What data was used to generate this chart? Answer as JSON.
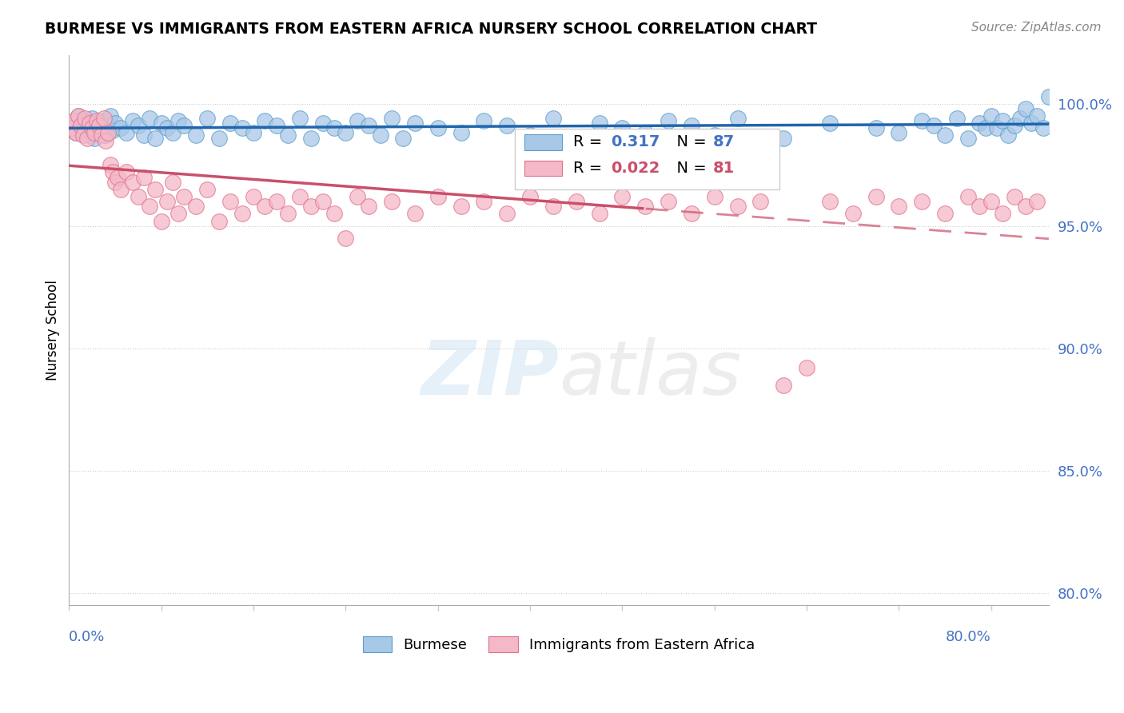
{
  "title": "BURMESE VS IMMIGRANTS FROM EASTERN AFRICA NURSERY SCHOOL CORRELATION CHART",
  "source": "Source: ZipAtlas.com",
  "ylabel": "Nursery School",
  "y_ticks": [
    80.0,
    85.0,
    90.0,
    95.0,
    100.0
  ],
  "x_range": [
    0.0,
    80.0
  ],
  "y_range": [
    79.5,
    102.0
  ],
  "legend_r_blue": "R =  0.317",
  "legend_n_blue": "N = 87",
  "legend_r_pink": "R = 0.022",
  "legend_n_pink": "N = 81",
  "blue_color": "#a8c8e8",
  "blue_edge_color": "#5b9dc9",
  "pink_color": "#f4b8c8",
  "pink_edge_color": "#e0708a",
  "trend_blue_color": "#2166ac",
  "trend_pink_color": "#c9506a",
  "blue_x": [
    0.4,
    0.6,
    0.8,
    1.0,
    1.2,
    1.4,
    1.6,
    1.8,
    2.0,
    2.2,
    2.4,
    2.6,
    2.8,
    3.0,
    3.2,
    3.4,
    3.6,
    3.8,
    4.0,
    4.5,
    5.0,
    5.5,
    6.0,
    6.5,
    7.0,
    7.5,
    8.0,
    8.5,
    9.0,
    9.5,
    10.0,
    11.0,
    12.0,
    13.0,
    14.0,
    15.0,
    16.0,
    17.0,
    18.0,
    19.0,
    20.0,
    21.0,
    22.0,
    23.0,
    24.0,
    25.0,
    26.0,
    27.0,
    28.0,
    29.0,
    30.0,
    32.0,
    34.0,
    36.0,
    38.0,
    40.0,
    42.0,
    44.0,
    46.0,
    48.0,
    50.0,
    52.0,
    54.0,
    56.0,
    58.0,
    62.0,
    66.0,
    70.0,
    72.0,
    74.0,
    75.0,
    76.0,
    77.0,
    78.0,
    79.0,
    79.5,
    80.0,
    80.5,
    81.0,
    81.5,
    82.0,
    82.5,
    83.0,
    83.5,
    84.0,
    84.5,
    85.0
  ],
  "blue_y": [
    99.2,
    98.8,
    99.5,
    99.1,
    98.9,
    99.3,
    99.0,
    98.7,
    99.4,
    98.6,
    99.2,
    99.0,
    98.8,
    99.3,
    98.7,
    99.1,
    99.5,
    98.9,
    99.2,
    99.0,
    98.8,
    99.3,
    99.1,
    98.7,
    99.4,
    98.6,
    99.2,
    99.0,
    98.8,
    99.3,
    99.1,
    98.7,
    99.4,
    98.6,
    99.2,
    99.0,
    98.8,
    99.3,
    99.1,
    98.7,
    99.4,
    98.6,
    99.2,
    99.0,
    98.8,
    99.3,
    99.1,
    98.7,
    99.4,
    98.6,
    99.2,
    99.0,
    98.8,
    99.3,
    99.1,
    98.7,
    99.4,
    98.6,
    99.2,
    99.0,
    98.8,
    99.3,
    99.1,
    98.7,
    99.4,
    98.6,
    99.2,
    99.0,
    98.8,
    99.3,
    99.1,
    98.7,
    99.4,
    98.6,
    99.2,
    99.0,
    99.5,
    99.0,
    99.3,
    98.7,
    99.1,
    99.4,
    99.8,
    99.2,
    99.5,
    99.0,
    100.3
  ],
  "pink_x": [
    0.2,
    0.4,
    0.6,
    0.8,
    1.0,
    1.2,
    1.4,
    1.6,
    1.8,
    2.0,
    2.2,
    2.4,
    2.6,
    2.8,
    3.0,
    3.2,
    3.4,
    3.6,
    3.8,
    4.0,
    4.2,
    4.5,
    5.0,
    5.5,
    6.0,
    6.5,
    7.0,
    7.5,
    8.0,
    8.5,
    9.0,
    9.5,
    10.0,
    11.0,
    12.0,
    13.0,
    14.0,
    15.0,
    16.0,
    17.0,
    18.0,
    19.0,
    20.0,
    21.0,
    22.0,
    23.0,
    24.0,
    25.0,
    26.0,
    28.0,
    30.0,
    32.0,
    34.0,
    36.0,
    38.0,
    40.0,
    42.0,
    44.0,
    46.0,
    48.0,
    50.0,
    52.0,
    54.0,
    56.0,
    58.0,
    60.0,
    62.0,
    64.0,
    66.0,
    68.0,
    70.0,
    72.0,
    74.0,
    76.0,
    78.0,
    79.0,
    80.0,
    81.0,
    82.0,
    83.0,
    84.0
  ],
  "pink_y": [
    99.0,
    99.3,
    98.8,
    99.5,
    99.1,
    98.7,
    99.4,
    98.6,
    99.2,
    99.0,
    98.8,
    99.3,
    99.1,
    98.7,
    99.4,
    98.5,
    98.8,
    97.5,
    97.2,
    96.8,
    97.0,
    96.5,
    97.2,
    96.8,
    96.2,
    97.0,
    95.8,
    96.5,
    95.2,
    96.0,
    96.8,
    95.5,
    96.2,
    95.8,
    96.5,
    95.2,
    96.0,
    95.5,
    96.2,
    95.8,
    96.0,
    95.5,
    96.2,
    95.8,
    96.0,
    95.5,
    94.5,
    96.2,
    95.8,
    96.0,
    95.5,
    96.2,
    95.8,
    96.0,
    95.5,
    96.2,
    95.8,
    96.0,
    95.5,
    96.2,
    95.8,
    96.0,
    95.5,
    96.2,
    95.8,
    96.0,
    88.5,
    89.2,
    96.0,
    95.5,
    96.2,
    95.8,
    96.0,
    95.5,
    96.2,
    95.8,
    96.0,
    95.5,
    96.2,
    95.8,
    96.0
  ]
}
